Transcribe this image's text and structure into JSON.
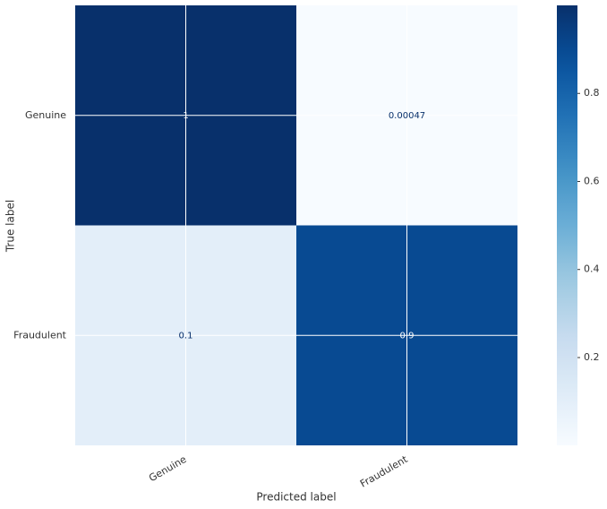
{
  "chart_data": {
    "type": "heatmap",
    "xlabel": "Predicted label",
    "ylabel": "True label",
    "columns": [
      "Genuine",
      "Fraudulent"
    ],
    "rows": [
      "Genuine",
      "Fraudulent"
    ],
    "values": [
      [
        1,
        0.00047
      ],
      [
        0.1,
        0.9
      ]
    ],
    "colormap": "Blues",
    "colorbar_lim": [
      0.00047,
      1
    ],
    "colorbar_ticks": [
      0.2,
      0.4,
      0.6,
      0.8
    ],
    "grid": true
  }
}
